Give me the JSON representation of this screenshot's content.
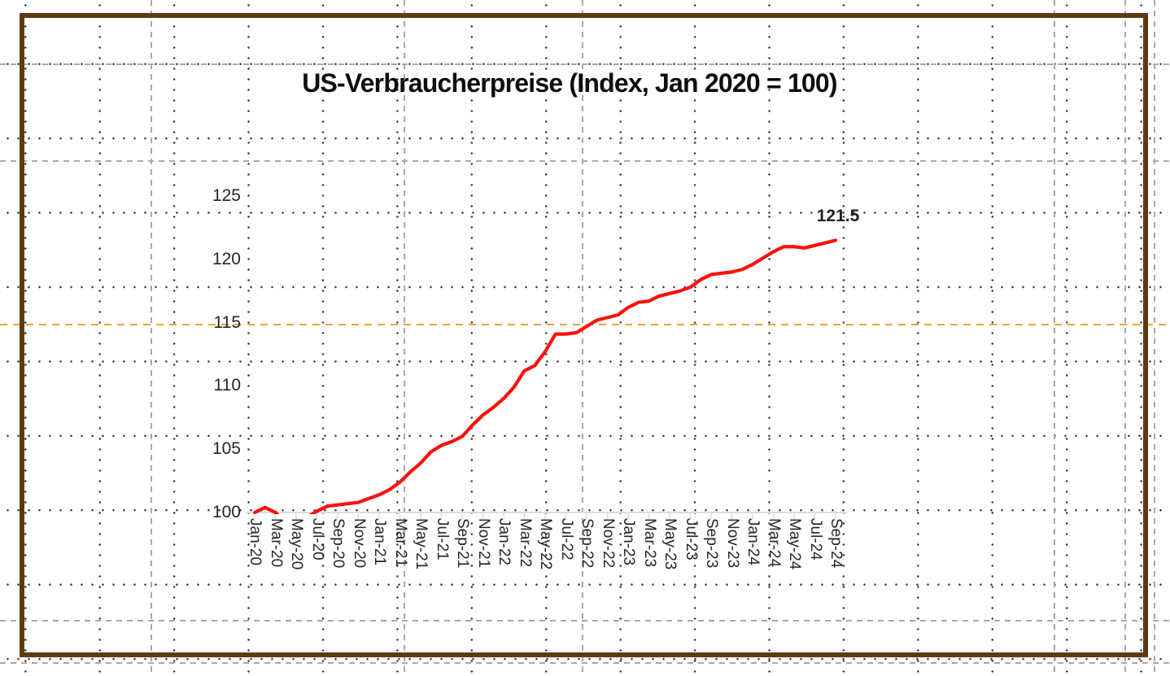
{
  "canvas": {
    "frame_color": "#5e3a12",
    "grid_dot_color": "#2e2e2e",
    "guide_color": "#a8a8a8",
    "accent_guide_color": "#eda23c",
    "axis_color": "#dcdcdc"
  },
  "chart_data": {
    "type": "line",
    "title": "US-Verbraucherpreise (Index, Jan 2020 = 100)",
    "xlabel": "",
    "ylabel": "",
    "ylim": [
      100,
      125
    ],
    "yticks": [
      125,
      120,
      115,
      110,
      105,
      100
    ],
    "x_tick_labels": [
      "Jan-20",
      "Mar-20",
      "May-20",
      "Jul-20",
      "Sep-20",
      "Nov-20",
      "Jan-21",
      "Mar-21",
      "May-21",
      "Jul-21",
      "Sep-21",
      "Nov-21",
      "Jan-22",
      "Mar-22",
      "May-22",
      "Jul-22",
      "Sep-22",
      "Nov-22",
      "Jan-23",
      "Mar-23",
      "May-23",
      "Jul-23",
      "Sep-23",
      "Nov-23",
      "Jan-24",
      "Mar-24",
      "May-24",
      "Jul-24",
      "Sep-24"
    ],
    "x_frequency": "monthly, labels every 2nd month",
    "grid": "off",
    "legend": "none",
    "end_label": "121.5",
    "series": [
      {
        "name": "US-Verbraucherpreise",
        "color": "#fb100d",
        "values": [
          100.0,
          100.4,
          100.0,
          99.2,
          99.1,
          99.6,
          100.1,
          100.5,
          100.6,
          100.7,
          100.8,
          101.1,
          101.4,
          101.8,
          102.4,
          103.2,
          103.9,
          104.8,
          105.3,
          105.6,
          106.0,
          106.9,
          107.7,
          108.3,
          109.0,
          109.9,
          111.2,
          111.6,
          112.7,
          114.1,
          114.1,
          114.2,
          114.7,
          115.2,
          115.4,
          115.6,
          116.2,
          116.6,
          116.7,
          117.1,
          117.3,
          117.5,
          117.8,
          118.4,
          118.8,
          118.9,
          119.0,
          119.2,
          119.6,
          120.1,
          120.6,
          121.0,
          121.0,
          120.9,
          121.1,
          121.3,
          121.5
        ]
      }
    ]
  }
}
